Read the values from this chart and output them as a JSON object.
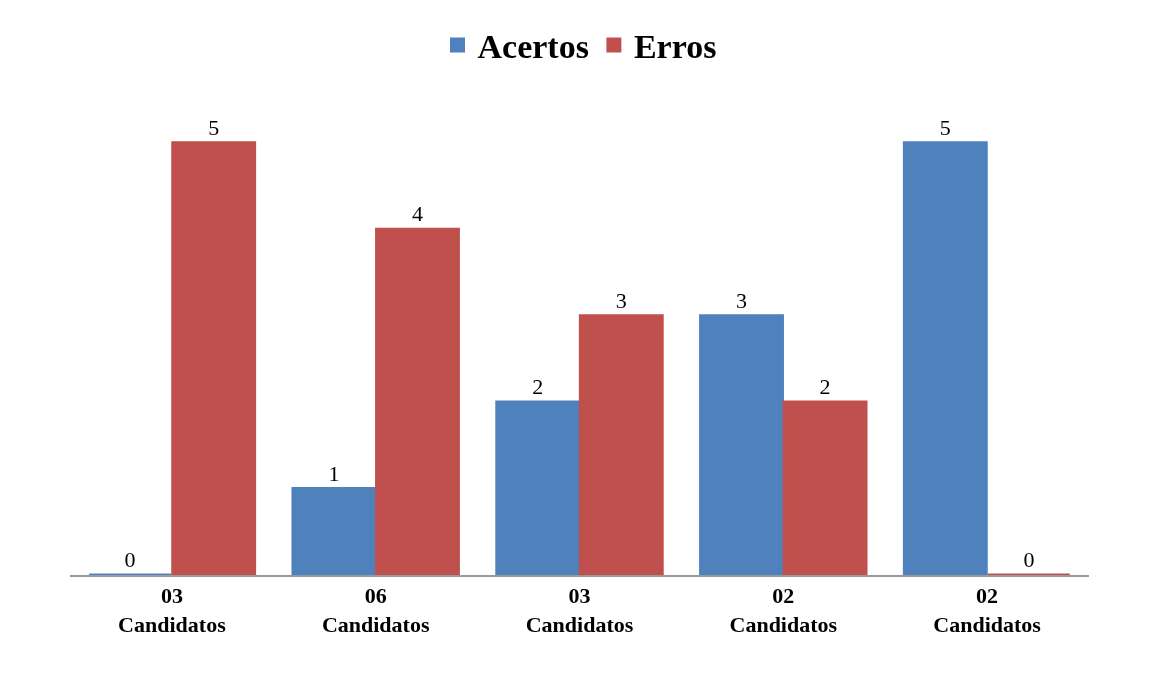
{
  "chart_data": {
    "type": "bar",
    "categories": [
      "03 Candidatos",
      "06 Candidatos",
      "03 Candidatos",
      "02 Candidatos",
      "02 Candidatos"
    ],
    "series": [
      {
        "name": "Acertos",
        "color": "#4f81bd",
        "values": [
          0,
          1,
          2,
          3,
          5
        ]
      },
      {
        "name": "Erros",
        "color": "#c0504d",
        "values": [
          5,
          4,
          3,
          2,
          0
        ]
      }
    ],
    "data_labels": true,
    "legend": "top",
    "grid": false
  }
}
